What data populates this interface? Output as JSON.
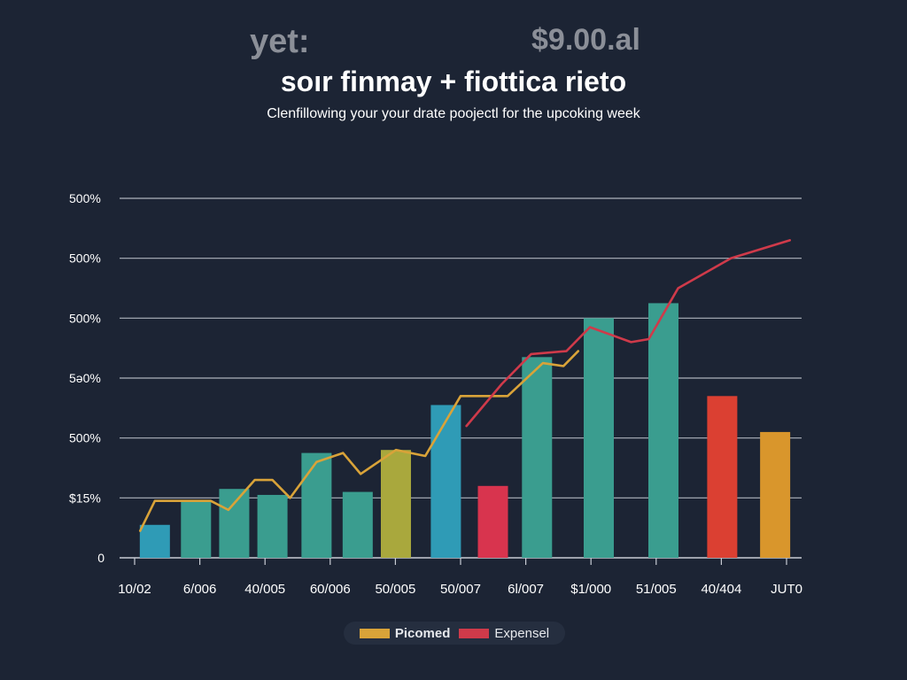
{
  "header": {
    "left_text": "yet:",
    "right_text": "$9.00.al",
    "title": "soır finmay + fiottica rieto",
    "subtitle": "Clenfillowing your your drate poojectl for the upcoking week"
  },
  "chart_data": {
    "type": "bar",
    "y_tick_labels": [
      "0",
      "$15%",
      "500%",
      "5ə0%",
      "500%",
      "500%",
      "500%"
    ],
    "y_tick_values": [
      0,
      1,
      2,
      3,
      4,
      5,
      6
    ],
    "ylim": [
      0,
      6
    ],
    "grid": true,
    "categories": [
      "10/02",
      "6/006",
      "40/005",
      "60/006",
      "50/005",
      "50/007",
      "6l/007",
      "$1/000",
      "51/005",
      "40/404",
      "JUT0"
    ],
    "bars": [
      {
        "x": 0.6,
        "value": 0.55,
        "color": "#2f9bb6"
      },
      {
        "x": 1.3,
        "value": 0.95,
        "color": "#3a9d8f"
      },
      {
        "x": 1.95,
        "value": 1.15,
        "color": "#3a9d8f"
      },
      {
        "x": 2.6,
        "value": 1.05,
        "color": "#3a9d8f"
      },
      {
        "x": 3.35,
        "value": 1.75,
        "color": "#3a9d8f"
      },
      {
        "x": 4.05,
        "value": 1.1,
        "color": "#3a9d8f"
      },
      {
        "x": 4.7,
        "value": 1.8,
        "color": "#a9a83d"
      },
      {
        "x": 5.55,
        "value": 2.55,
        "color": "#2f9bb6"
      },
      {
        "x": 6.35,
        "value": 1.2,
        "color": "#d8344e"
      },
      {
        "x": 7.1,
        "value": 3.35,
        "color": "#3a9d8f"
      },
      {
        "x": 8.15,
        "value": 4.0,
        "color": "#3a9d8f"
      },
      {
        "x": 9.25,
        "value": 4.25,
        "color": "#3a9d8f"
      },
      {
        "x": 10.25,
        "value": 2.7,
        "color": "#db4032"
      },
      {
        "x": 11.15,
        "value": 2.1,
        "color": "#d9962c"
      }
    ],
    "series": [
      {
        "name": "Picomed",
        "color": "#d9a339",
        "points": [
          [
            0.35,
            0.45
          ],
          [
            0.6,
            0.95
          ],
          [
            1.2,
            0.95
          ],
          [
            1.55,
            0.95
          ],
          [
            1.85,
            0.8
          ],
          [
            2.3,
            1.3
          ],
          [
            2.6,
            1.3
          ],
          [
            2.9,
            1.0
          ],
          [
            3.35,
            1.6
          ],
          [
            3.8,
            1.75
          ],
          [
            4.1,
            1.4
          ],
          [
            4.7,
            1.8
          ],
          [
            5.2,
            1.7
          ],
          [
            5.8,
            2.7
          ],
          [
            6.6,
            2.7
          ],
          [
            7.2,
            3.25
          ],
          [
            7.55,
            3.2
          ],
          [
            7.8,
            3.45
          ]
        ]
      },
      {
        "name": "Expensel",
        "color": "#cf3a4a",
        "points": [
          [
            5.9,
            2.2
          ],
          [
            6.5,
            2.9
          ],
          [
            7.0,
            3.4
          ],
          [
            7.6,
            3.45
          ],
          [
            8.0,
            3.85
          ],
          [
            8.7,
            3.6
          ],
          [
            9.0,
            3.65
          ],
          [
            9.5,
            4.5
          ],
          [
            10.4,
            5.0
          ],
          [
            11.4,
            5.3
          ]
        ]
      }
    ],
    "legend": {
      "position": "bottom-center",
      "items": [
        {
          "label": "Picomed",
          "color": "#d9a339"
        },
        {
          "label": "Expensel",
          "color": "#cf3a4a"
        }
      ]
    },
    "colors": {
      "background": "#1c2434",
      "grid": "#c8ccd4",
      "axis_text": "#ffffff"
    }
  }
}
